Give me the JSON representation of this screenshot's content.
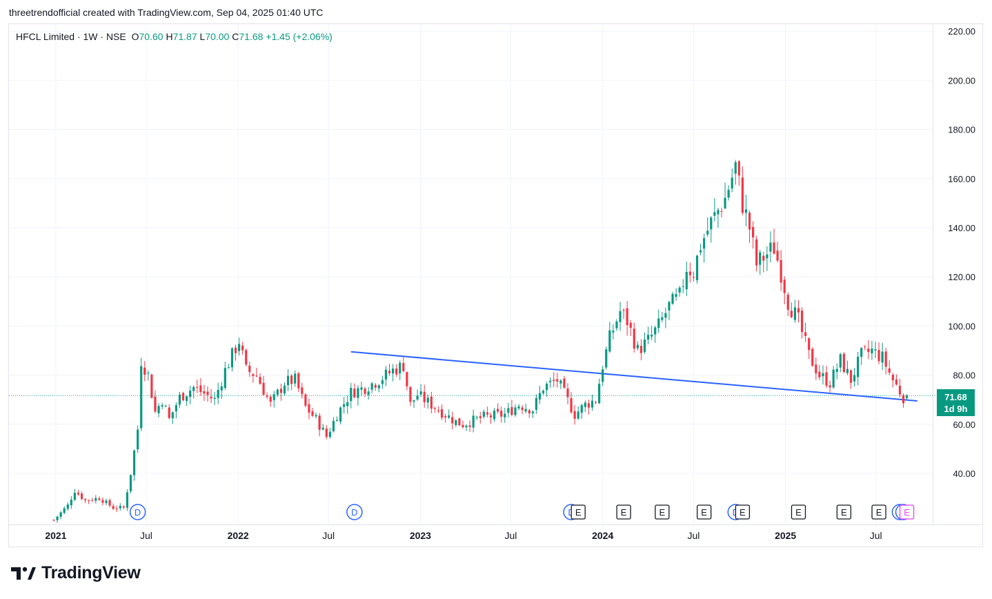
{
  "header": {
    "attribution": "threetrendofficial created with TradingView.com, Sep 04, 2025 01:40 UTC"
  },
  "legend": {
    "symbol": "HFCL Limited · 1W · NSE",
    "open_label": "O",
    "open": "70.60",
    "high_label": "H",
    "high": "71.87",
    "low_label": "L",
    "low": "70.00",
    "close_label": "C",
    "close": "71.68",
    "change": "+1.45 (+2.06%)"
  },
  "price_tag": {
    "price": "71.68",
    "countdown": "1d 9h"
  },
  "brand": {
    "name": "TradingView"
  },
  "colors": {
    "up": "#089981",
    "down": "#f23645",
    "trendline": "#2962ff",
    "grid": "#f0f3fa",
    "dividend": "#2962ff",
    "earnings": "#131722",
    "future_earnings": "#e040fb"
  },
  "chart_data": {
    "type": "candlestick",
    "y_axis": {
      "ticks": [
        "220.00",
        "200.00",
        "180.00",
        "160.00",
        "140.00",
        "120.00",
        "100.00",
        "80.00",
        "60.00",
        "40.00"
      ],
      "min": 20,
      "max": 225
    },
    "x_axis": {
      "labels": [
        "2021",
        "Jul",
        "2022",
        "Jul",
        "2023",
        "Jul",
        "2024",
        "Jul",
        "2025",
        "Jul"
      ],
      "start": "2020-12-28",
      "end": "2025-10-13"
    },
    "grid": true,
    "last_price_line": 71.68,
    "trendline": {
      "from": [
        "2022-08-15",
        89.5
      ],
      "to": [
        "2025-09-22",
        69.5
      ],
      "color": "#2962ff"
    },
    "event_markers": [
      {
        "type": "D",
        "date": "2021-06-14"
      },
      {
        "type": "D",
        "date": "2022-08-22"
      },
      {
        "type": "D",
        "date": "2023-10-30"
      },
      {
        "type": "E",
        "date": "2023-11-13"
      },
      {
        "type": "E",
        "date": "2024-02-12"
      },
      {
        "type": "E",
        "date": "2024-04-29"
      },
      {
        "type": "E",
        "date": "2024-07-22"
      },
      {
        "type": "D",
        "date": "2024-09-23"
      },
      {
        "type": "E",
        "date": "2024-10-07"
      },
      {
        "type": "E",
        "date": "2025-01-27"
      },
      {
        "type": "E",
        "date": "2025-04-28"
      },
      {
        "type": "E",
        "date": "2025-07-07"
      },
      {
        "type": "D",
        "date": "2025-08-18"
      },
      {
        "type": "D",
        "date": "2025-08-25"
      },
      {
        "type": "E",
        "date": "2025-09-01",
        "future": true
      }
    ],
    "anchors": [
      [
        "2020-12-28",
        21
      ],
      [
        "2021-01-25",
        27
      ],
      [
        "2021-02-08",
        33
      ],
      [
        "2021-03-01",
        29
      ],
      [
        "2021-03-29",
        30
      ],
      [
        "2021-04-26",
        26
      ],
      [
        "2021-05-17",
        26
      ],
      [
        "2021-05-31",
        40
      ],
      [
        "2021-06-14",
        58
      ],
      [
        "2021-06-21",
        86
      ],
      [
        "2021-07-05",
        80
      ],
      [
        "2021-07-19",
        65
      ],
      [
        "2021-08-02",
        70
      ],
      [
        "2021-08-16",
        62
      ],
      [
        "2021-09-06",
        71
      ],
      [
        "2021-10-04",
        75
      ],
      [
        "2021-11-15",
        70
      ],
      [
        "2021-12-06",
        82
      ],
      [
        "2022-01-03",
        94
      ],
      [
        "2022-01-17",
        82
      ],
      [
        "2022-02-07",
        80
      ],
      [
        "2022-03-07",
        68
      ],
      [
        "2022-04-04",
        77
      ],
      [
        "2022-04-25",
        78
      ],
      [
        "2022-05-16",
        67
      ],
      [
        "2022-06-06",
        62
      ],
      [
        "2022-06-27",
        55
      ],
      [
        "2022-07-18",
        64
      ],
      [
        "2022-08-15",
        73
      ],
      [
        "2022-09-12",
        75
      ],
      [
        "2022-10-10",
        78
      ],
      [
        "2022-11-07",
        82
      ],
      [
        "2022-11-28",
        84
      ],
      [
        "2022-12-12",
        68
      ],
      [
        "2022-12-26",
        72
      ],
      [
        "2023-01-23",
        68
      ],
      [
        "2023-03-13",
        61
      ],
      [
        "2023-03-27",
        60
      ],
      [
        "2023-05-08",
        63
      ],
      [
        "2023-06-19",
        64
      ],
      [
        "2023-07-17",
        68
      ],
      [
        "2023-08-14",
        66
      ],
      [
        "2023-09-04",
        75
      ],
      [
        "2023-10-02",
        78
      ],
      [
        "2023-11-06",
        64
      ],
      [
        "2023-11-27",
        68
      ],
      [
        "2023-12-18",
        70
      ],
      [
        "2024-01-01",
        84
      ],
      [
        "2024-01-15",
        95
      ],
      [
        "2024-02-05",
        106
      ],
      [
        "2024-02-19",
        102
      ],
      [
        "2024-03-11",
        90
      ],
      [
        "2024-04-01",
        94
      ],
      [
        "2024-04-22",
        100
      ],
      [
        "2024-05-13",
        108
      ],
      [
        "2024-06-03",
        112
      ],
      [
        "2024-06-17",
        124
      ],
      [
        "2024-07-01",
        122
      ],
      [
        "2024-07-15",
        133
      ],
      [
        "2024-08-05",
        142
      ],
      [
        "2024-09-02",
        152
      ],
      [
        "2024-09-23",
        165
      ],
      [
        "2024-10-07",
        150
      ],
      [
        "2024-10-21",
        140
      ],
      [
        "2024-11-04",
        125
      ],
      [
        "2024-11-18",
        128
      ],
      [
        "2024-12-09",
        132
      ],
      [
        "2024-12-23",
        122
      ],
      [
        "2025-01-06",
        110
      ],
      [
        "2025-01-27",
        102
      ],
      [
        "2025-02-17",
        88
      ],
      [
        "2025-03-10",
        80
      ],
      [
        "2025-03-31",
        77
      ],
      [
        "2025-04-21",
        86
      ],
      [
        "2025-05-12",
        78
      ],
      [
        "2025-06-02",
        88
      ],
      [
        "2025-06-23",
        90
      ],
      [
        "2025-07-14",
        87
      ],
      [
        "2025-08-04",
        78
      ],
      [
        "2025-08-25",
        71
      ],
      [
        "2025-09-01",
        71.68
      ]
    ]
  }
}
